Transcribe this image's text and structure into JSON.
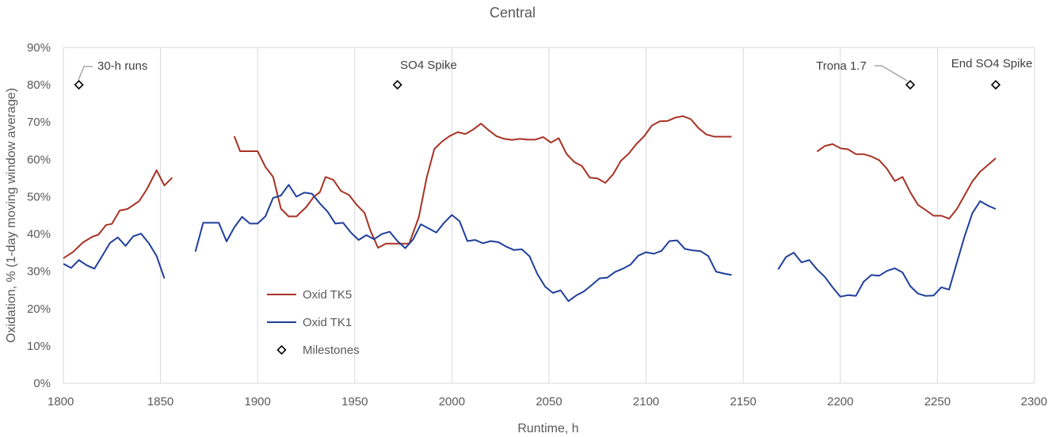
{
  "chart_data": {
    "type": "line",
    "title": "Central",
    "xlabel": "Runtime, h",
    "ylabel": "Oxidation, % (1-day moving window average)",
    "xlim": [
      1800,
      2300
    ],
    "ylim": [
      0,
      0.9
    ],
    "xticks": [
      "1800",
      "1850",
      "1900",
      "1950",
      "2000",
      "2050",
      "2100",
      "2150",
      "2200",
      "2250",
      "2300"
    ],
    "yticks": [
      "0%",
      "10%",
      "20%",
      "30%",
      "40%",
      "50%",
      "60%",
      "70%",
      "80%",
      "90%"
    ],
    "grid": "vertical",
    "legend_position": "inside-lower-left",
    "series": [
      {
        "name": "Oxid TK5",
        "color": "#a83224",
        "segments": [
          [
            [
              1800,
              0.335
            ],
            [
              1805,
              0.352
            ],
            [
              1810,
              0.377
            ],
            [
              1815,
              0.393
            ],
            [
              1818,
              0.398
            ],
            [
              1822,
              0.424
            ],
            [
              1825,
              0.427
            ],
            [
              1829,
              0.463
            ],
            [
              1833,
              0.467
            ],
            [
              1839,
              0.488
            ],
            [
              1843,
              0.52
            ],
            [
              1848,
              0.571
            ],
            [
              1852,
              0.53
            ],
            [
              1856,
              0.551
            ]
          ],
          [
            [
              1888,
              0.662
            ],
            [
              1891,
              0.622
            ],
            [
              1895,
              0.622
            ],
            [
              1900,
              0.622
            ],
            [
              1904,
              0.58
            ],
            [
              1908,
              0.553
            ],
            [
              1912,
              0.468
            ],
            [
              1916,
              0.447
            ],
            [
              1920,
              0.447
            ],
            [
              1925,
              0.472
            ],
            [
              1929,
              0.5
            ],
            [
              1932,
              0.512
            ],
            [
              1935,
              0.553
            ],
            [
              1939,
              0.545
            ],
            [
              1943,
              0.515
            ],
            [
              1947,
              0.505
            ],
            [
              1951,
              0.478
            ],
            [
              1955,
              0.457
            ],
            [
              1958,
              0.41
            ],
            [
              1962,
              0.363
            ],
            [
              1966,
              0.374
            ],
            [
              1970,
              0.374
            ],
            [
              1974,
              0.374
            ],
            [
              1978,
              0.374
            ],
            [
              1983,
              0.445
            ],
            [
              1987,
              0.55
            ],
            [
              1991,
              0.628
            ],
            [
              1995,
              0.648
            ],
            [
              1999,
              0.663
            ],
            [
              2003,
              0.673
            ],
            [
              2007,
              0.668
            ],
            [
              2011,
              0.68
            ],
            [
              2015,
              0.696
            ],
            [
              2019,
              0.678
            ],
            [
              2023,
              0.662
            ],
            [
              2027,
              0.655
            ],
            [
              2031,
              0.652
            ],
            [
              2035,
              0.655
            ],
            [
              2039,
              0.653
            ],
            [
              2043,
              0.653
            ],
            [
              2047,
              0.66
            ],
            [
              2051,
              0.645
            ],
            [
              2055,
              0.657
            ],
            [
              2059,
              0.615
            ],
            [
              2063,
              0.593
            ],
            [
              2067,
              0.582
            ],
            [
              2071,
              0.551
            ],
            [
              2075,
              0.549
            ],
            [
              2079,
              0.537
            ],
            [
              2083,
              0.56
            ],
            [
              2087,
              0.596
            ],
            [
              2091,
              0.615
            ],
            [
              2095,
              0.641
            ],
            [
              2099,
              0.662
            ],
            [
              2103,
              0.691
            ],
            [
              2107,
              0.702
            ],
            [
              2111,
              0.703
            ],
            [
              2115,
              0.712
            ],
            [
              2119,
              0.716
            ],
            [
              2123,
              0.708
            ],
            [
              2127,
              0.684
            ],
            [
              2131,
              0.667
            ],
            [
              2135,
              0.661
            ],
            [
              2139,
              0.661
            ],
            [
              2144,
              0.661
            ]
          ],
          [
            [
              2188,
              0.621
            ],
            [
              2192,
              0.636
            ],
            [
              2196,
              0.641
            ],
            [
              2200,
              0.63
            ],
            [
              2204,
              0.627
            ],
            [
              2208,
              0.614
            ],
            [
              2212,
              0.614
            ],
            [
              2216,
              0.608
            ],
            [
              2220,
              0.598
            ],
            [
              2224,
              0.575
            ],
            [
              2228,
              0.542
            ],
            [
              2232,
              0.553
            ],
            [
              2236,
              0.512
            ],
            [
              2240,
              0.478
            ],
            [
              2244,
              0.464
            ],
            [
              2248,
              0.449
            ],
            [
              2252,
              0.449
            ],
            [
              2256,
              0.441
            ],
            [
              2260,
              0.467
            ],
            [
              2264,
              0.504
            ],
            [
              2268,
              0.541
            ],
            [
              2272,
              0.567
            ],
            [
              2276,
              0.585
            ],
            [
              2280,
              0.603
            ]
          ]
        ]
      },
      {
        "name": "Oxid TK1",
        "color": "#1f3f9a",
        "segments": [
          [
            [
              1800,
              0.32
            ],
            [
              1804,
              0.309
            ],
            [
              1808,
              0.33
            ],
            [
              1812,
              0.316
            ],
            [
              1816,
              0.307
            ],
            [
              1820,
              0.341
            ],
            [
              1824,
              0.376
            ],
            [
              1828,
              0.391
            ],
            [
              1832,
              0.368
            ],
            [
              1836,
              0.394
            ],
            [
              1840,
              0.401
            ],
            [
              1844,
              0.375
            ],
            [
              1848,
              0.341
            ],
            [
              1852,
              0.281
            ]
          ],
          [
            [
              1868,
              0.353
            ],
            [
              1872,
              0.43
            ],
            [
              1876,
              0.43
            ],
            [
              1880,
              0.43
            ],
            [
              1884,
              0.38
            ],
            [
              1888,
              0.418
            ],
            [
              1892,
              0.446
            ],
            [
              1896,
              0.428
            ],
            [
              1900,
              0.428
            ],
            [
              1904,
              0.447
            ],
            [
              1908,
              0.497
            ],
            [
              1912,
              0.503
            ],
            [
              1916,
              0.532
            ],
            [
              1920,
              0.5
            ],
            [
              1924,
              0.511
            ],
            [
              1928,
              0.508
            ],
            [
              1932,
              0.482
            ],
            [
              1936,
              0.46
            ],
            [
              1940,
              0.428
            ],
            [
              1944,
              0.43
            ],
            [
              1948,
              0.404
            ],
            [
              1952,
              0.384
            ],
            [
              1956,
              0.397
            ],
            [
              1960,
              0.386
            ],
            [
              1964,
              0.4
            ],
            [
              1968,
              0.406
            ],
            [
              1972,
              0.381
            ],
            [
              1976,
              0.362
            ],
            [
              1980,
              0.385
            ],
            [
              1984,
              0.426
            ],
            [
              1988,
              0.415
            ],
            [
              1992,
              0.404
            ],
            [
              1996,
              0.43
            ],
            [
              2000,
              0.451
            ],
            [
              2004,
              0.434
            ],
            [
              2008,
              0.381
            ],
            [
              2012,
              0.384
            ],
            [
              2016,
              0.375
            ],
            [
              2020,
              0.381
            ],
            [
              2024,
              0.378
            ],
            [
              2028,
              0.366
            ],
            [
              2032,
              0.357
            ],
            [
              2036,
              0.359
            ],
            [
              2040,
              0.34
            ],
            [
              2044,
              0.293
            ],
            [
              2048,
              0.259
            ],
            [
              2052,
              0.242
            ],
            [
              2056,
              0.249
            ],
            [
              2060,
              0.22
            ],
            [
              2064,
              0.235
            ],
            [
              2068,
              0.246
            ],
            [
              2072,
              0.263
            ],
            [
              2076,
              0.281
            ],
            [
              2080,
              0.283
            ],
            [
              2084,
              0.298
            ],
            [
              2088,
              0.307
            ],
            [
              2092,
              0.318
            ],
            [
              2096,
              0.342
            ],
            [
              2100,
              0.351
            ],
            [
              2104,
              0.347
            ],
            [
              2108,
              0.355
            ],
            [
              2112,
              0.381
            ],
            [
              2116,
              0.383
            ],
            [
              2120,
              0.36
            ],
            [
              2124,
              0.356
            ],
            [
              2128,
              0.354
            ],
            [
              2132,
              0.341
            ],
            [
              2136,
              0.299
            ],
            [
              2140,
              0.294
            ],
            [
              2144,
              0.29
            ]
          ],
          [
            [
              2168,
              0.305
            ],
            [
              2172,
              0.338
            ],
            [
              2176,
              0.35
            ],
            [
              2180,
              0.324
            ],
            [
              2184,
              0.33
            ],
            [
              2188,
              0.305
            ],
            [
              2192,
              0.285
            ],
            [
              2196,
              0.257
            ],
            [
              2200,
              0.232
            ],
            [
              2204,
              0.236
            ],
            [
              2208,
              0.234
            ],
            [
              2212,
              0.272
            ],
            [
              2216,
              0.29
            ],
            [
              2220,
              0.288
            ],
            [
              2224,
              0.301
            ],
            [
              2228,
              0.308
            ],
            [
              2232,
              0.297
            ],
            [
              2236,
              0.26
            ],
            [
              2240,
              0.24
            ],
            [
              2244,
              0.234
            ],
            [
              2248,
              0.235
            ],
            [
              2252,
              0.257
            ],
            [
              2256,
              0.251
            ],
            [
              2260,
              0.323
            ],
            [
              2264,
              0.394
            ],
            [
              2268,
              0.456
            ],
            [
              2272,
              0.488
            ],
            [
              2276,
              0.476
            ],
            [
              2280,
              0.467
            ]
          ]
        ]
      }
    ],
    "milestones": {
      "name": "Milestones",
      "points": [
        {
          "x": 1808,
          "y": 0.8,
          "label": "30-h runs"
        },
        {
          "x": 1972,
          "y": 0.8,
          "label": "SO4 Spike"
        },
        {
          "x": 2236,
          "y": 0.8,
          "label": "Trona 1.7"
        },
        {
          "x": 2280,
          "y": 0.8,
          "label": "End SO4 Spike"
        }
      ]
    }
  }
}
